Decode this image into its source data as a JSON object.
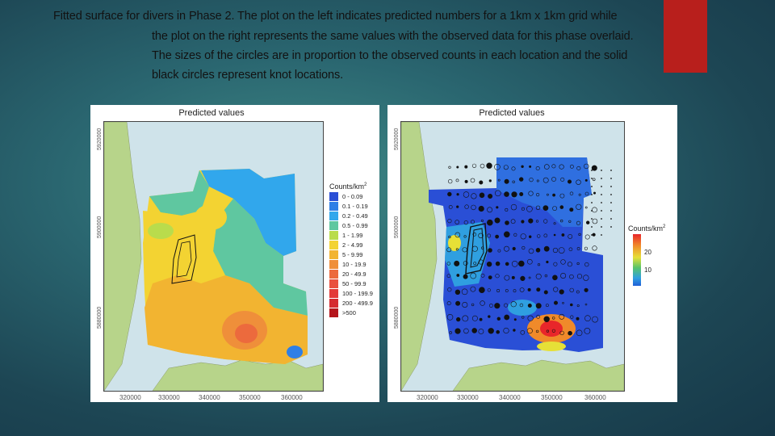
{
  "caption": {
    "line1": "Fitted surface for divers in Phase 2. The plot on the left indicates predicted numbers for a 1km x 1km grid while",
    "line2": "the plot on the right represents the same values with the observed data for this phase overlaid.",
    "line3": "The sizes of the circles are in proportion to the observed counts in each location and the solid",
    "line4": "black circles represent knot locations."
  },
  "left_plot": {
    "title": "Predicted values",
    "y_ticks": [
      "5920000",
      "5900000",
      "5880000"
    ],
    "x_ticks": [
      "320000",
      "330000",
      "340000",
      "350000",
      "360000"
    ],
    "legend": {
      "title": "Counts/km",
      "title_sup": "2",
      "items": [
        {
          "label": "0 - 0.09",
          "color": "#2a4fd6"
        },
        {
          "label": "0.1 - 0.19",
          "color": "#2f7fe6"
        },
        {
          "label": "0.2 - 0.49",
          "color": "#31a7ec"
        },
        {
          "label": "0.5 - 0.99",
          "color": "#5fc7a0"
        },
        {
          "label": "1 - 1.99",
          "color": "#b9dc4c"
        },
        {
          "label": "2 - 4.99",
          "color": "#f3d332"
        },
        {
          "label": "5 - 9.99",
          "color": "#f2b431"
        },
        {
          "label": "10 - 19.9",
          "color": "#ef8f3a"
        },
        {
          "label": "20 - 49.9",
          "color": "#ec6a3d"
        },
        {
          "label": "50 - 99.9",
          "color": "#e9503e"
        },
        {
          "label": "100 - 199.9",
          "color": "#e33a38"
        },
        {
          "label": "200 - 499.9",
          "color": "#d52a2f"
        },
        {
          "label": ">500",
          "color": "#b5151c"
        }
      ]
    }
  },
  "right_plot": {
    "title": "Predicted values",
    "y_ticks": [
      "5920000",
      "5900000",
      "5880000"
    ],
    "x_ticks": [
      "320000",
      "330000",
      "340000",
      "350000",
      "360000"
    ],
    "colorbar": {
      "title": "Counts/km",
      "title_sup": "2",
      "ticks": [
        "20",
        "10"
      ]
    }
  },
  "colors": {
    "accent": "#b81f1c",
    "land": "#b7d48a",
    "sea": "#cfe3ea"
  }
}
